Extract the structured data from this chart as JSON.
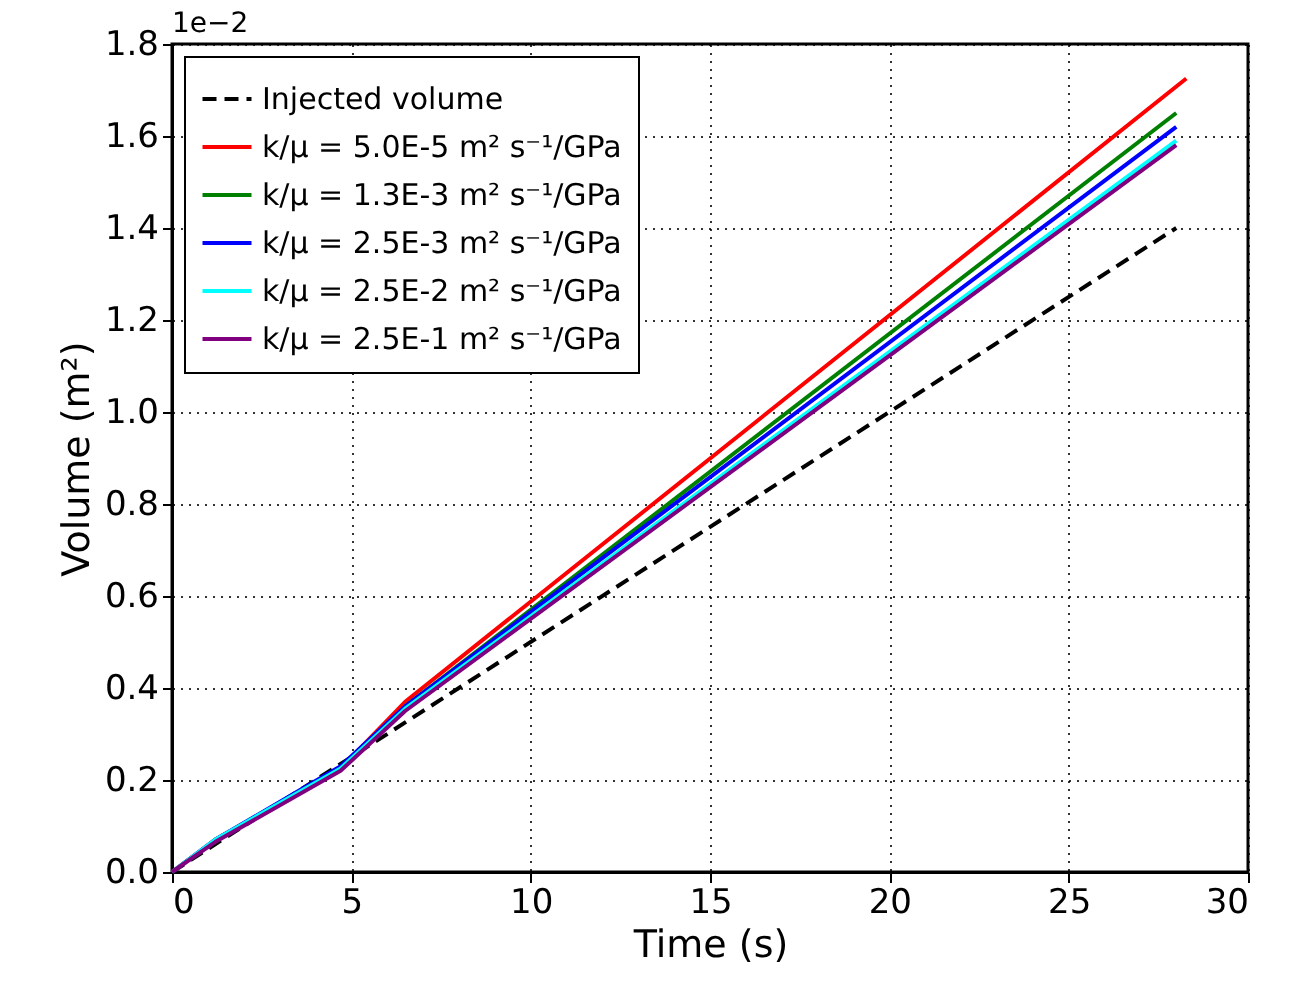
{
  "chart_data": {
    "type": "line",
    "xlabel": "Time (s)",
    "ylabel": "Volume (m²)",
    "annotations": [
      "1e−2"
    ],
    "xlim": [
      0,
      30
    ],
    "ylim": [
      0,
      1.8
    ],
    "xticks": [
      0,
      5,
      10,
      15,
      20,
      25,
      30
    ],
    "yticks": [
      {
        "value": 0,
        "label": "0.0"
      },
      {
        "value": 0.2,
        "label": "0.2"
      },
      {
        "value": 0.4,
        "label": "0.4"
      },
      {
        "value": 0.6,
        "label": "0.6"
      },
      {
        "value": 0.8,
        "label": "0.8"
      },
      {
        "value": 1.0,
        "label": "1.0"
      },
      {
        "value": 1.2,
        "label": "1.2"
      },
      {
        "value": 1.4,
        "label": "1.4"
      },
      {
        "value": 1.6,
        "label": "1.6"
      },
      {
        "value": 1.8,
        "label": "1.8"
      }
    ],
    "grid": true,
    "legend": "top left",
    "series": [
      {
        "name": "Injected volume",
        "color": "#000000",
        "line_style": "dashed",
        "x": [
          0,
          28
        ],
        "values": [
          0,
          1.4
        ]
      },
      {
        "name": "k/μ = 5.0E-5 m² s⁻¹/GPa",
        "color": "#ff0000",
        "line_style": "solid",
        "x": [
          0,
          1.2,
          4.7,
          6.5,
          28.28
        ],
        "values": [
          0,
          0.07,
          0.225,
          0.37,
          1.725
        ]
      },
      {
        "name": "k/μ = 1.3E-3 m² s⁻¹/GPa",
        "color": "#008000",
        "line_style": "solid",
        "x": [
          6.5,
          28.0
        ],
        "values": [
          0.36,
          1.65
        ]
      },
      {
        "name": "k/μ = 2.5E-3 m² s⁻¹/GPa",
        "color": "#0000ff",
        "line_style": "solid",
        "x": [
          0,
          1.2,
          4.7,
          6.5,
          28.0
        ],
        "values": [
          0,
          0.07,
          0.23,
          0.36,
          1.62
        ]
      },
      {
        "name": "k/μ = 2.5E-2 m² s⁻¹/GPa",
        "color": "#00ffff",
        "line_style": "solid",
        "x": [
          0,
          1.2,
          4.7,
          6.5,
          28.0
        ],
        "values": [
          0,
          0.07,
          0.225,
          0.355,
          1.59
        ]
      },
      {
        "name": "k/μ = 2.5E-1 m² s⁻¹/GPa",
        "color": "#800080",
        "line_style": "solid",
        "x": [
          0,
          1.2,
          4.7,
          6.5,
          28.0
        ],
        "values": [
          0,
          0.065,
          0.22,
          0.35,
          1.58
        ]
      }
    ]
  }
}
